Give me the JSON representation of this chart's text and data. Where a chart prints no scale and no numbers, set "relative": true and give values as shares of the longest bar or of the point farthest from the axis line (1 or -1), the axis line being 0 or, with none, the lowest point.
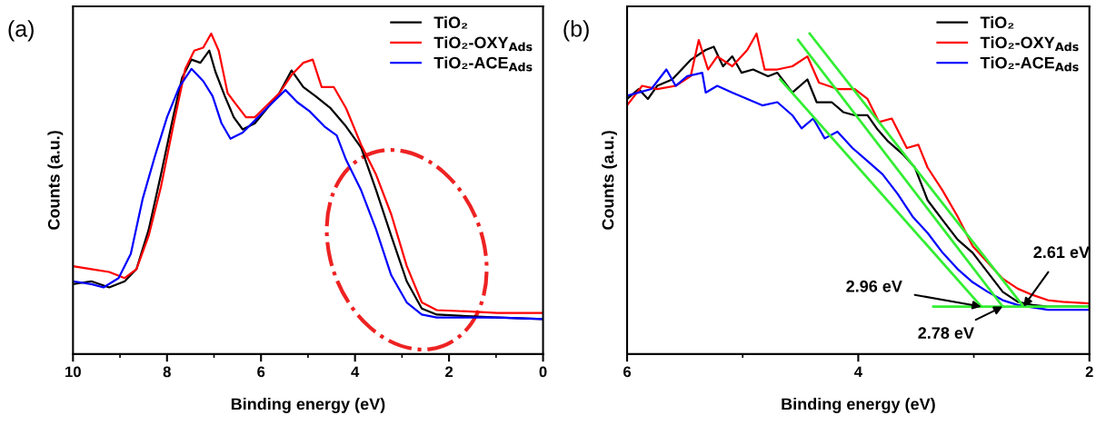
{
  "chart_data": [
    {
      "type": "line",
      "title": "(a)",
      "xlabel": "Binding energy (eV)",
      "ylabel": "Counts (a.u.)",
      "relative": true,
      "tick_labels": "x",
      "legend": "top right",
      "grid": false,
      "xlim": [
        10,
        0
      ],
      "xticks": [
        10,
        8,
        6,
        4,
        2,
        0
      ],
      "series": [
        {
          "name": "TiO₂",
          "color": "#000000",
          "x": [
            10.0,
            9.61,
            9.23,
            8.9,
            8.65,
            8.39,
            8.13,
            7.87,
            7.68,
            7.48,
            7.29,
            7.1,
            6.97,
            6.77,
            6.58,
            6.39,
            6.13,
            5.87,
            5.61,
            5.35,
            5.1,
            4.84,
            4.52,
            4.19,
            3.87,
            3.55,
            3.23,
            2.9,
            2.58,
            2.26,
            1.61,
            0.97,
            0.0
          ],
          "values": [
            0.218,
            0.227,
            0.208,
            0.227,
            0.265,
            0.388,
            0.559,
            0.739,
            0.862,
            0.919,
            0.909,
            0.947,
            0.881,
            0.805,
            0.739,
            0.701,
            0.72,
            0.767,
            0.814,
            0.885,
            0.833,
            0.805,
            0.767,
            0.71,
            0.644,
            0.511,
            0.369,
            0.227,
            0.142,
            0.123,
            0.118,
            0.114,
            0.109
          ]
        },
        {
          "name": "TiO₂-OXY$_{Ads}$",
          "color": "#ff0000",
          "x": [
            10.0,
            9.61,
            9.23,
            8.9,
            8.65,
            8.39,
            8.13,
            7.87,
            7.61,
            7.42,
            7.23,
            7.06,
            6.9,
            6.71,
            6.52,
            6.32,
            6.13,
            5.87,
            5.61,
            5.35,
            5.1,
            4.9,
            4.71,
            4.45,
            4.19,
            3.87,
            3.55,
            3.23,
            2.9,
            2.58,
            2.26,
            1.61,
            0.97,
            0.0
          ],
          "values": [
            0.274,
            0.265,
            0.256,
            0.237,
            0.265,
            0.369,
            0.521,
            0.71,
            0.89,
            0.947,
            0.956,
            1.0,
            0.947,
            0.814,
            0.777,
            0.739,
            0.739,
            0.777,
            0.814,
            0.871,
            0.909,
            0.919,
            0.833,
            0.833,
            0.767,
            0.653,
            0.559,
            0.436,
            0.275,
            0.161,
            0.137,
            0.133,
            0.128,
            0.128
          ]
        },
        {
          "name": "TiO₂-ACE$_{Ads}$",
          "color": "#0000ff",
          "x": [
            10.0,
            9.61,
            9.35,
            9.03,
            8.77,
            8.52,
            8.26,
            8.0,
            7.74,
            7.48,
            7.23,
            7.03,
            6.84,
            6.65,
            6.39,
            6.13,
            5.81,
            5.48,
            5.23,
            4.97,
            4.65,
            4.39,
            4.19,
            3.87,
            3.55,
            3.23,
            2.9,
            2.58,
            2.26,
            1.94,
            0.97,
            0.0
          ],
          "values": [
            0.227,
            0.218,
            0.208,
            0.237,
            0.313,
            0.483,
            0.616,
            0.739,
            0.833,
            0.89,
            0.852,
            0.805,
            0.72,
            0.672,
            0.691,
            0.729,
            0.777,
            0.824,
            0.786,
            0.758,
            0.71,
            0.682,
            0.606,
            0.511,
            0.388,
            0.246,
            0.161,
            0.123,
            0.114,
            0.114,
            0.114,
            0.109
          ]
        }
      ]
    },
    {
      "type": "line",
      "title": "(b)",
      "xlabel": "Binding energy (eV)",
      "ylabel": "Counts (a.u.)",
      "relative": true,
      "tick_labels": "x",
      "legend": "top right",
      "grid": false,
      "xlim": [
        6,
        2
      ],
      "xticks": [
        6,
        4,
        2
      ],
      "series": [
        {
          "name": "TiO₂",
          "color": "#000000",
          "x": [
            6.0,
            5.9,
            5.82,
            5.74,
            5.61,
            5.45,
            5.32,
            5.25,
            5.17,
            5.09,
            5.01,
            4.91,
            4.78,
            4.7,
            4.57,
            4.44,
            4.36,
            4.23,
            4.13,
            4.03,
            3.92,
            3.84,
            3.74,
            3.61,
            3.51,
            3.4,
            3.27,
            3.14,
            3.01,
            2.88,
            2.75,
            2.62,
            2.49,
            2.36,
            2.0
          ],
          "values": [
            0.796,
            0.827,
            0.796,
            0.837,
            0.857,
            0.918,
            0.949,
            0.959,
            0.898,
            0.929,
            0.878,
            0.888,
            0.867,
            0.878,
            0.816,
            0.857,
            0.786,
            0.786,
            0.755,
            0.745,
            0.745,
            0.704,
            0.663,
            0.622,
            0.582,
            0.48,
            0.418,
            0.357,
            0.316,
            0.255,
            0.194,
            0.163,
            0.153,
            0.148,
            0.148
          ]
        },
        {
          "name": "TiO₂-OXY$_{Ads}$",
          "color": "#ff0000",
          "x": [
            6.0,
            5.87,
            5.74,
            5.58,
            5.45,
            5.38,
            5.3,
            5.22,
            5.09,
            4.96,
            4.88,
            4.81,
            4.7,
            4.57,
            4.44,
            4.34,
            4.18,
            4.03,
            3.92,
            3.82,
            3.71,
            3.58,
            3.48,
            3.4,
            3.27,
            3.14,
            3.01,
            2.88,
            2.75,
            2.62,
            2.49,
            2.36,
            2.23,
            2.0
          ],
          "values": [
            0.776,
            0.837,
            0.827,
            0.837,
            0.867,
            0.98,
            0.888,
            0.929,
            0.898,
            0.949,
            1.0,
            0.888,
            0.888,
            0.898,
            0.929,
            0.847,
            0.827,
            0.827,
            0.796,
            0.724,
            0.735,
            0.643,
            0.653,
            0.582,
            0.51,
            0.429,
            0.337,
            0.286,
            0.235,
            0.204,
            0.184,
            0.168,
            0.163,
            0.158
          ]
        },
        {
          "name": "TiO₂-ACE$_{Ads}$",
          "color": "#0000ff",
          "x": [
            6.0,
            5.9,
            5.79,
            5.66,
            5.58,
            5.48,
            5.35,
            5.32,
            5.22,
            5.09,
            4.96,
            4.83,
            4.7,
            4.57,
            4.49,
            4.39,
            4.29,
            4.18,
            4.05,
            3.92,
            3.79,
            3.66,
            3.53,
            3.4,
            3.27,
            3.14,
            3.01,
            2.88,
            2.75,
            2.62,
            2.36,
            2.0
          ],
          "values": [
            0.806,
            0.816,
            0.827,
            0.888,
            0.837,
            0.867,
            0.878,
            0.816,
            0.837,
            0.816,
            0.796,
            0.776,
            0.786,
            0.745,
            0.704,
            0.735,
            0.673,
            0.694,
            0.643,
            0.602,
            0.561,
            0.5,
            0.429,
            0.378,
            0.316,
            0.265,
            0.224,
            0.194,
            0.168,
            0.153,
            0.138,
            0.138
          ]
        },
        {
          "type": "line",
          "color": "#33ee33",
          "x": [
            4.675,
            2.935
          ],
          "values": [
            0.857,
            0.148
          ]
        },
        {
          "type": "line",
          "color": "#33ee33",
          "x": [
            4.52,
            2.75
          ],
          "values": [
            0.98,
            0.148
          ]
        },
        {
          "type": "line",
          "color": "#33ee33",
          "x": [
            4.42,
            2.57
          ],
          "values": [
            1.0,
            0.148
          ]
        },
        {
          "type": "line",
          "color": "#33ee33",
          "x": [
            3.35,
            2.0
          ],
          "values": [
            0.148,
            0.148
          ]
        }
      ],
      "annotations": [
        {
          "text": "2.96 eV",
          "x": 2.935,
          "y": 0.148
        },
        {
          "text": "2.78 eV",
          "x": 2.75,
          "y": 0.148
        },
        {
          "text": "2.61 eV",
          "x": 2.57,
          "y": 0.148
        }
      ]
    }
  ]
}
